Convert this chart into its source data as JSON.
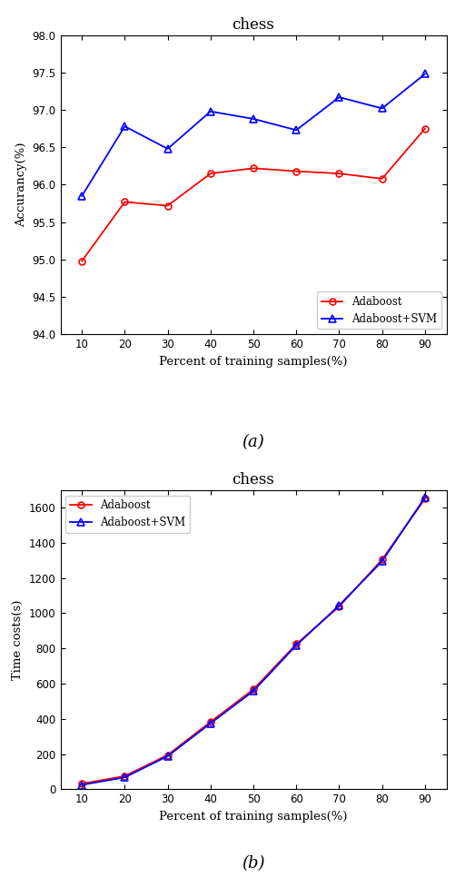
{
  "x": [
    10,
    20,
    30,
    40,
    50,
    60,
    70,
    80,
    90
  ],
  "acc_adaboost": [
    94.98,
    95.77,
    95.72,
    96.15,
    96.22,
    96.18,
    96.15,
    96.08,
    96.75
  ],
  "acc_adaboost_svm": [
    95.85,
    96.78,
    96.48,
    96.98,
    96.88,
    96.73,
    97.17,
    97.02,
    97.48
  ],
  "time_adaboost": [
    32,
    75,
    195,
    383,
    568,
    825,
    1038,
    1305,
    1650
  ],
  "time_adaboost_svm": [
    25,
    68,
    188,
    375,
    558,
    818,
    1045,
    1295,
    1658
  ],
  "title": "chess",
  "xlabel": "Percent of training samples(%)",
  "ylabel_acc": "Accurancy(%)",
  "ylabel_time": "Time costs(s)",
  "label_adaboost": "Adaboost",
  "label_adaboost_svm": "Adaboost+SVM",
  "sublabel_a": "(a)",
  "sublabel_b": "(b)",
  "acc_ylim": [
    94,
    98
  ],
  "acc_yticks": [
    94,
    94.5,
    95,
    95.5,
    96,
    96.5,
    97,
    97.5,
    98
  ],
  "time_ylim": [
    0,
    1700
  ],
  "time_yticks": [
    0,
    200,
    400,
    600,
    800,
    1000,
    1200,
    1400,
    1600
  ],
  "color_red": "#FF0000",
  "color_blue": "#0000FF",
  "bg_color": "#FFFFFF"
}
